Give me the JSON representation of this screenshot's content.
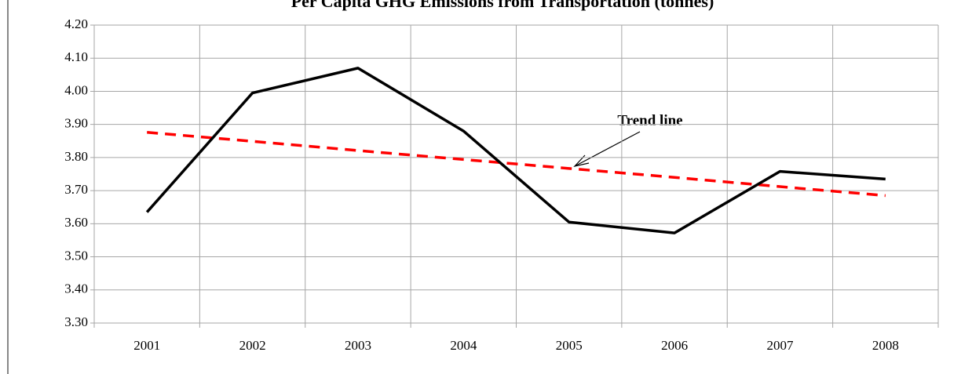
{
  "chart_data": {
    "type": "line",
    "title": "Per Capita GHG Emissions from Transportation (tonnes)",
    "categories": [
      "2001",
      "2002",
      "2003",
      "2004",
      "2005",
      "2006",
      "2007",
      "2008"
    ],
    "series": [
      {
        "color": "#000000",
        "values": [
          3.635,
          3.995,
          4.07,
          3.88,
          3.605,
          3.572,
          3.758,
          3.735
        ]
      }
    ],
    "trend_line": {
      "color": "#ff0000",
      "values": [
        3.876,
        3.849,
        3.821,
        3.794,
        3.767,
        3.74,
        3.712,
        3.685
      ]
    },
    "annotation": "Trend line",
    "ylim": [
      3.3,
      4.2
    ],
    "yticks": [
      {
        "value": 3.3,
        "label": "3.30"
      },
      {
        "value": 3.4,
        "label": "3.40"
      },
      {
        "value": 3.5,
        "label": "3.50"
      },
      {
        "value": 3.6,
        "label": "3.60"
      },
      {
        "value": 3.7,
        "label": "3.70"
      },
      {
        "value": 3.8,
        "label": "3.80"
      },
      {
        "value": 3.9,
        "label": "3.90"
      },
      {
        "value": 4.0,
        "label": "4.00"
      },
      {
        "value": 4.1,
        "label": "4.10"
      },
      {
        "value": 4.2,
        "label": "4.20"
      }
    ],
    "grid": true
  }
}
